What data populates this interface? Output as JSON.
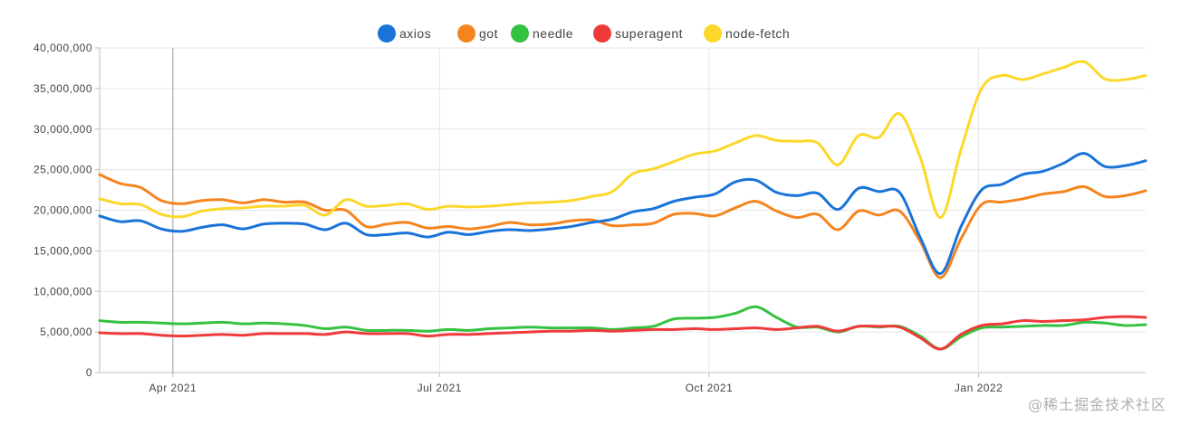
{
  "watermark": "@稀土掘金技术社区",
  "chart_data": {
    "type": "line",
    "title": "",
    "xlabel": "",
    "ylabel": "",
    "ylim": [
      0,
      40000000
    ],
    "y_ticks": [
      0,
      5000000,
      10000000,
      15000000,
      20000000,
      25000000,
      30000000,
      35000000,
      40000000
    ],
    "y_tick_labels": [
      "0",
      "5,000,000",
      "10,000,000",
      "15,000,000",
      "20,000,000",
      "25,000,000",
      "30,000,000",
      "35,000,000",
      "40,000,000"
    ],
    "x_ticks": [
      {
        "date": "2021-04-01",
        "label": "Apr 2021"
      },
      {
        "date": "2021-07-01",
        "label": "Jul 2021"
      },
      {
        "date": "2021-10-01",
        "label": "Oct 2021"
      },
      {
        "date": "2022-01-01",
        "label": "Jan 2022"
      }
    ],
    "xlim": [
      "2021-03-07",
      "2022-02-27"
    ],
    "grid": true,
    "legend_position": "top-center",
    "x": [
      "2021-03-07",
      "2021-03-14",
      "2021-03-21",
      "2021-03-28",
      "2021-04-04",
      "2021-04-11",
      "2021-04-18",
      "2021-04-25",
      "2021-05-02",
      "2021-05-09",
      "2021-05-16",
      "2021-05-23",
      "2021-05-30",
      "2021-06-06",
      "2021-06-13",
      "2021-06-20",
      "2021-06-27",
      "2021-07-04",
      "2021-07-11",
      "2021-07-18",
      "2021-07-25",
      "2021-08-01",
      "2021-08-08",
      "2021-08-15",
      "2021-08-22",
      "2021-08-29",
      "2021-09-05",
      "2021-09-12",
      "2021-09-19",
      "2021-09-26",
      "2021-10-03",
      "2021-10-10",
      "2021-10-17",
      "2021-10-24",
      "2021-10-31",
      "2021-11-07",
      "2021-11-14",
      "2021-11-21",
      "2021-11-28",
      "2021-12-05",
      "2021-12-12",
      "2021-12-19",
      "2021-12-26",
      "2022-01-02",
      "2022-01-09",
      "2022-01-16",
      "2022-01-23",
      "2022-01-30",
      "2022-02-06",
      "2022-02-13",
      "2022-02-20",
      "2022-02-27"
    ],
    "series": [
      {
        "name": "axios",
        "color": "#1a73d9",
        "values": [
          19300000,
          18600000,
          18700000,
          17700000,
          17400000,
          17900000,
          18200000,
          17700000,
          18300000,
          18400000,
          18300000,
          17600000,
          18400000,
          17000000,
          17000000,
          17200000,
          16700000,
          17300000,
          17000000,
          17400000,
          17600000,
          17500000,
          17700000,
          18000000,
          18500000,
          18900000,
          19800000,
          20200000,
          21100000,
          21600000,
          22000000,
          23500000,
          23700000,
          22200000,
          21800000,
          22100000,
          20100000,
          22700000,
          22300000,
          22200000,
          16700000,
          12200000,
          18000000,
          22500000,
          23200000,
          24400000,
          24800000,
          25800000,
          27000000,
          25400000,
          25500000,
          26100000
        ]
      },
      {
        "name": "got",
        "color": "#f5841f",
        "values": [
          24400000,
          23300000,
          22800000,
          21200000,
          20800000,
          21200000,
          21300000,
          20900000,
          21300000,
          21000000,
          21000000,
          20000000,
          20000000,
          18000000,
          18300000,
          18500000,
          17800000,
          18000000,
          17700000,
          18000000,
          18500000,
          18200000,
          18300000,
          18700000,
          18800000,
          18100000,
          18200000,
          18400000,
          19500000,
          19600000,
          19300000,
          20300000,
          21100000,
          19900000,
          19100000,
          19500000,
          17600000,
          19900000,
          19400000,
          19900000,
          16200000,
          11700000,
          16500000,
          20700000,
          21000000,
          21400000,
          22000000,
          22300000,
          22900000,
          21700000,
          21800000,
          22400000
        ]
      },
      {
        "name": "needle",
        "color": "#34c240",
        "values": [
          6400000,
          6200000,
          6200000,
          6100000,
          6000000,
          6100000,
          6200000,
          6000000,
          6100000,
          6000000,
          5800000,
          5400000,
          5600000,
          5200000,
          5200000,
          5200000,
          5100000,
          5300000,
          5200000,
          5400000,
          5500000,
          5600000,
          5500000,
          5500000,
          5500000,
          5300000,
          5500000,
          5700000,
          6600000,
          6700000,
          6800000,
          7300000,
          8100000,
          6800000,
          5600000,
          5600000,
          5000000,
          5700000,
          5600000,
          5700000,
          4500000,
          2900000,
          4400000,
          5500000,
          5600000,
          5700000,
          5800000,
          5800000,
          6200000,
          6100000,
          5800000,
          5900000
        ]
      },
      {
        "name": "superagent",
        "color": "#f03a3a",
        "values": [
          4900000,
          4800000,
          4800000,
          4600000,
          4500000,
          4600000,
          4700000,
          4600000,
          4800000,
          4800000,
          4800000,
          4700000,
          5000000,
          4800000,
          4800000,
          4800000,
          4500000,
          4700000,
          4700000,
          4800000,
          4900000,
          5000000,
          5100000,
          5100000,
          5200000,
          5100000,
          5200000,
          5300000,
          5300000,
          5400000,
          5300000,
          5400000,
          5500000,
          5300000,
          5500000,
          5700000,
          5100000,
          5700000,
          5700000,
          5600000,
          4300000,
          2900000,
          4700000,
          5800000,
          6000000,
          6400000,
          6300000,
          6400000,
          6500000,
          6800000,
          6900000,
          6800000
        ]
      },
      {
        "name": "node-fetch",
        "color": "#fcd82a",
        "values": [
          21400000,
          20800000,
          20700000,
          19500000,
          19200000,
          19900000,
          20200000,
          20300000,
          20500000,
          20500000,
          20600000,
          19400000,
          21300000,
          20500000,
          20600000,
          20800000,
          20100000,
          20500000,
          20400000,
          20500000,
          20700000,
          20900000,
          21000000,
          21200000,
          21700000,
          22300000,
          24500000,
          25100000,
          26000000,
          26900000,
          27300000,
          28300000,
          29200000,
          28600000,
          28500000,
          28300000,
          25600000,
          29200000,
          29000000,
          31900000,
          26600000,
          19100000,
          27500000,
          35000000,
          36600000,
          36100000,
          36800000,
          37600000,
          38300000,
          36200000,
          36100000,
          36600000
        ]
      }
    ]
  }
}
